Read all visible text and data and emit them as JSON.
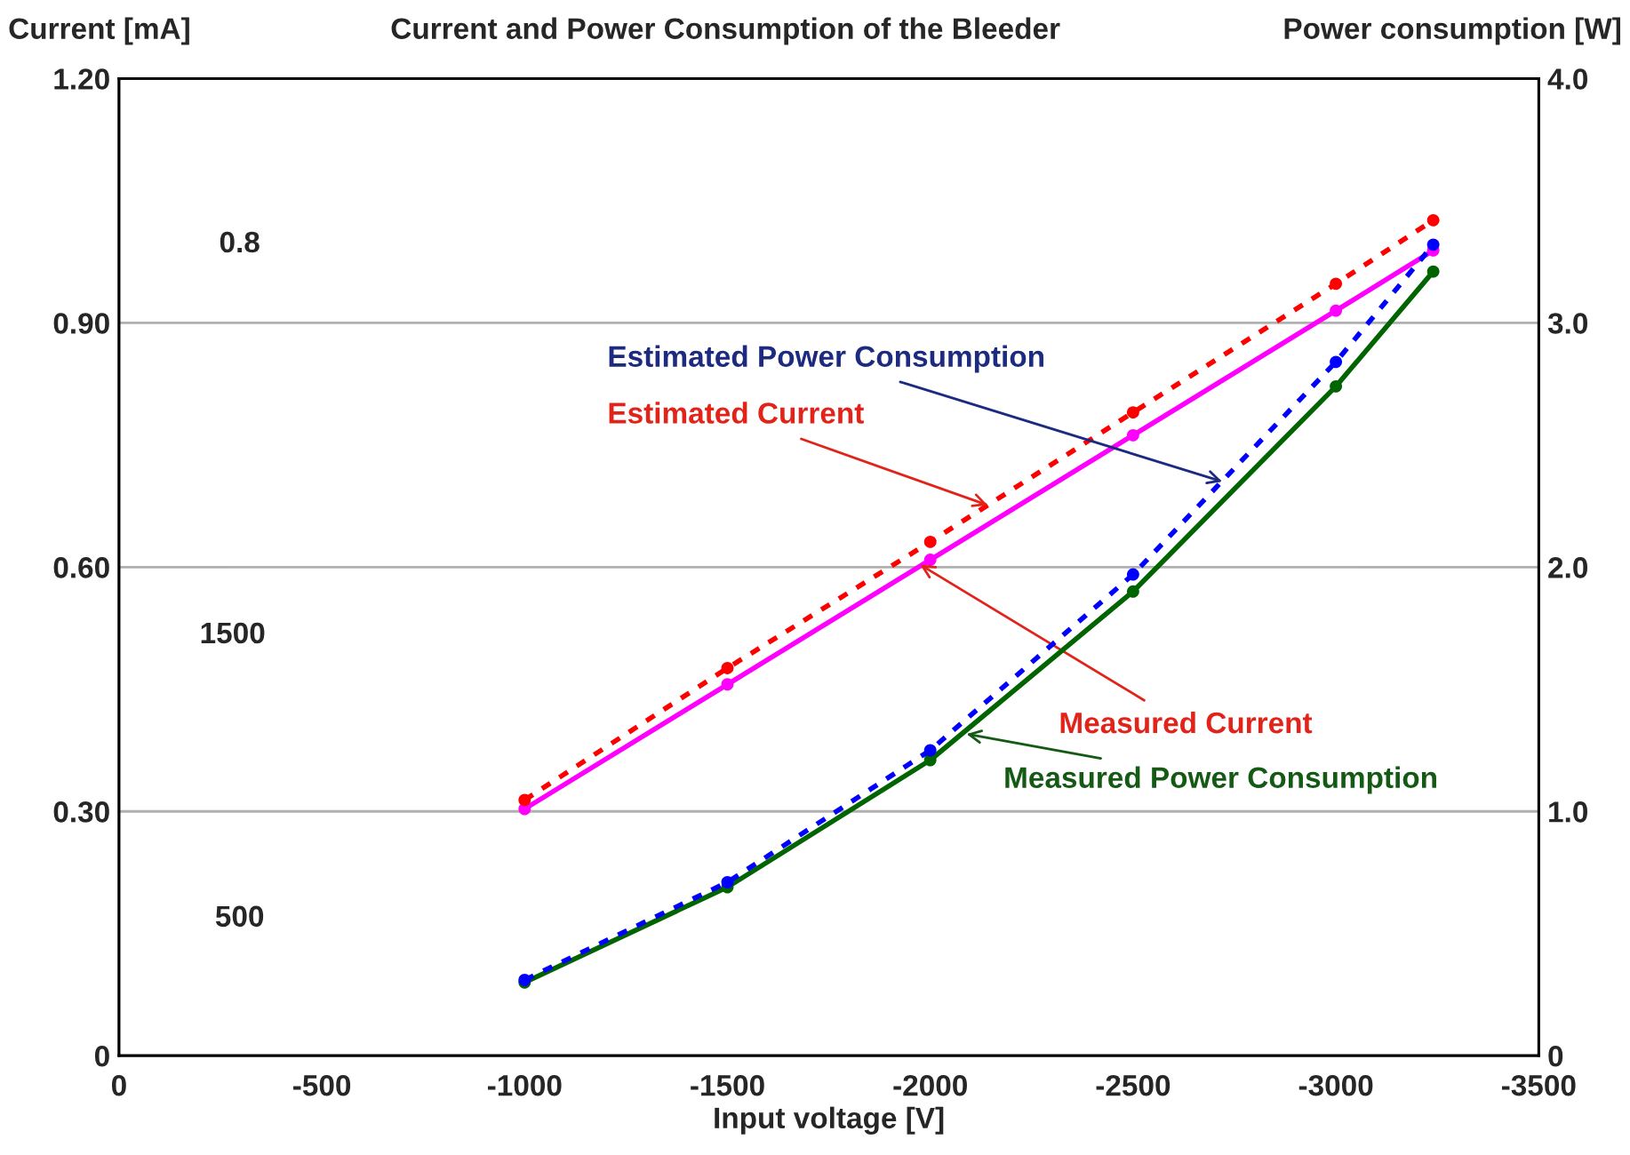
{
  "chart_data": {
    "type": "line",
    "title": "Current and Power Consumption of the Bleeder",
    "xlabel": "Input voltage [V]",
    "ylabel": "Current [mA]",
    "y2label": "Power consumption [W]",
    "x": [
      -1000,
      -1500,
      -2000,
      -2500,
      -3000,
      -3240
    ],
    "series": [
      {
        "color": "#ff0000",
        "line_style": "dotted",
        "values": [
          0.314,
          0.476,
          0.631,
          0.79,
          0.948,
          1.026
        ]
      },
      {
        "color": "#ff00ff",
        "line_style": "solid",
        "values": [
          0.303,
          0.456,
          0.609,
          0.762,
          0.915,
          0.989
        ]
      },
      {
        "color": "#0000ff",
        "line_style": "dotted",
        "axis": "y2",
        "values": [
          0.31,
          0.71,
          1.25,
          1.97,
          2.84,
          3.32
        ]
      },
      {
        "color": "#006400",
        "line_style": "solid",
        "axis": "y2",
        "values": [
          0.3,
          0.69,
          1.21,
          1.9,
          2.74,
          3.21
        ]
      }
    ],
    "xlim": [
      0,
      -3500
    ],
    "xticks": [
      0,
      -500,
      -1000,
      -1500,
      -2000,
      -2500,
      -3000,
      -3500
    ],
    "ylim": [
      0,
      1.2
    ],
    "yticks": [
      {
        "value": 0,
        "label": "0"
      },
      {
        "value": 0.3,
        "label": "0.30"
      },
      {
        "value": 0.6,
        "label": "0.60"
      },
      {
        "value": 0.9,
        "label": "0.90"
      },
      {
        "value": 1.2,
        "label": "1.20"
      }
    ],
    "y2lim": [
      0,
      4
    ],
    "y2ticks": [
      {
        "value": 0,
        "label": "0"
      },
      {
        "value": 1,
        "label": "1.0"
      },
      {
        "value": 2,
        "label": "2.0"
      },
      {
        "value": 3,
        "label": "3.0"
      },
      {
        "value": 4,
        "label": "4.0"
      }
    ],
    "grid": "y",
    "legend": false,
    "marker": "circle",
    "annotations": [
      {
        "text": "Estimated Power Consumption",
        "x": -2720,
        "y": 0.705
      },
      {
        "text": "Estimated Current",
        "x": -2142,
        "y": 0.676
      },
      {
        "text": "Measured Current",
        "x": -1975,
        "y": 0.603
      },
      {
        "text": "Measured Power Consumption",
        "x": -2089,
        "y": 0.395
      },
      "0.8",
      "1500",
      "500"
    ]
  }
}
